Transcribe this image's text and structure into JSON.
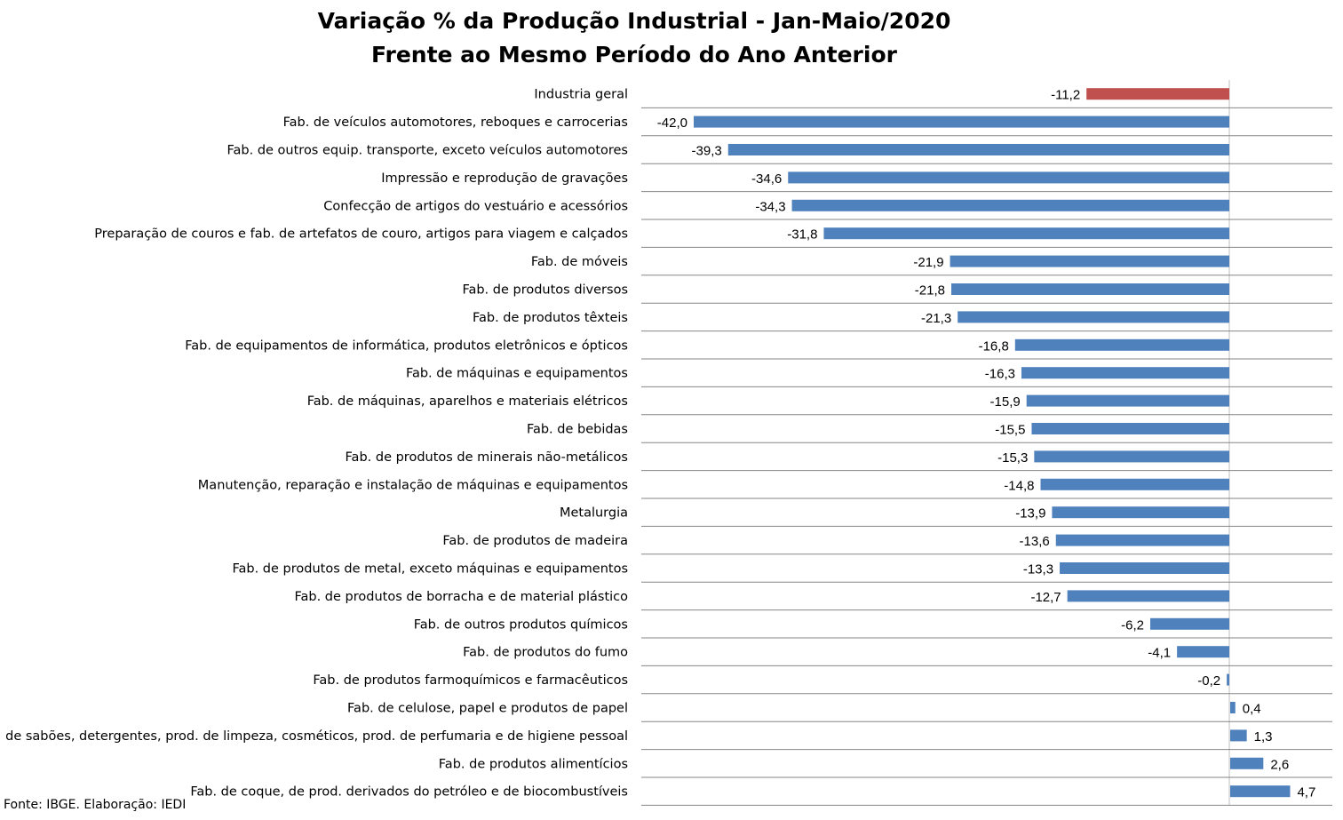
{
  "chart_data": {
    "type": "bar",
    "orientation": "horizontal",
    "title": "Variação % da Produção Industrial - Jan-Maio/2020",
    "subtitle": "Frente ao Mesmo Período do Ano Anterior",
    "source": "Fonte: IBGE. Elaboração: IEDI",
    "categories": [
      "Industria geral",
      "Fab. de veículos automotores, reboques e carrocerias",
      "Fab. de outros equip. transporte, exceto veículos automotores",
      "Impressão e reprodução de gravações",
      "Confecção de artigos do vestuário e acessórios",
      "Preparação de couros e fab. de artefatos de couro, artigos para viagem e calçados",
      "Fab. de móveis",
      "Fab. de produtos diversos",
      "Fab. de produtos têxteis",
      "Fab. de equipamentos de informática, produtos eletrônicos e ópticos",
      "Fab. de máquinas e equipamentos",
      "Fab. de máquinas, aparelhos e materiais elétricos",
      "Fab. de bebidas",
      "Fab. de produtos de minerais não-metálicos",
      "Manutenção, reparação e instalação de máquinas e equipamentos",
      "Metalurgia",
      "Fab. de produtos de madeira",
      "Fab. de produtos de metal, exceto máquinas e equipamentos",
      "Fab. de produtos de borracha e de material plástico",
      "Fab. de outros produtos químicos",
      "Fab. de produtos do fumo",
      "Fab. de produtos farmoquímicos e farmacêuticos",
      "Fab. de celulose, papel e produtos de papel",
      "Fab. de sabões, detergentes, prod. de limpeza, cosméticos, prod. de perfumaria e de higiene pessoal",
      "Fab. de produtos alimentícios",
      "Fab. de coque, de prod. derivados do petróleo e de biocombustíveis"
    ],
    "values": [
      -11.2,
      -42.0,
      -39.3,
      -34.6,
      -34.3,
      -31.8,
      -21.9,
      -21.8,
      -21.3,
      -16.8,
      -16.3,
      -15.9,
      -15.5,
      -15.3,
      -14.8,
      -13.9,
      -13.6,
      -13.3,
      -12.7,
      -6.2,
      -4.1,
      -0.2,
      0.4,
      1.3,
      2.6,
      4.7
    ],
    "labels": [
      "-11,2",
      "-42,0",
      "-39,3",
      "-34,6",
      "-34,3",
      "-31,8",
      "-21,9",
      "-21,8",
      "-21,3",
      "-16,8",
      "-16,3",
      "-15,9",
      "-15,5",
      "-15,3",
      "-14,8",
      "-13,9",
      "-13,6",
      "-13,3",
      "-12,7",
      "-6,2",
      "-4,1",
      "-0,2",
      "0,4",
      "1,3",
      "2,6",
      "4,7"
    ],
    "highlight_index": 0,
    "colors": {
      "bar": "#4F81BD",
      "highlight": "#C0504D",
      "gridline": "#868686",
      "axis": "#BFBFBF"
    },
    "grid": "horizontal",
    "legend": "none"
  }
}
